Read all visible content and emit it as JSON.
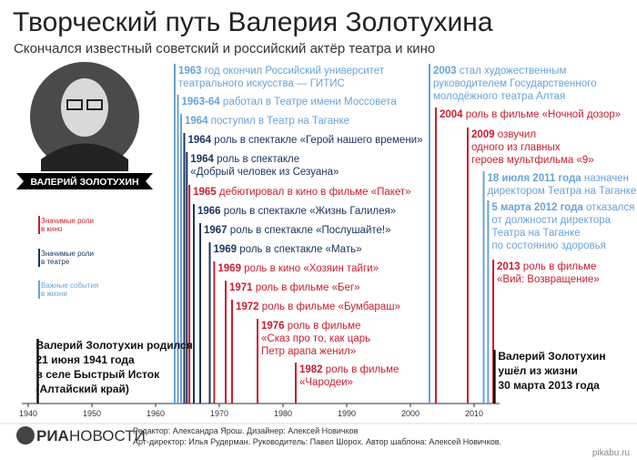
{
  "chart_data": {
    "type": "timeline",
    "title": "Творческий путь Валерия Золотухина",
    "subtitle": "Скончался известный советский и российский актёр театра и кино",
    "portrait_caption": "ВАЛЕРИЙ ЗОЛОТУХИН",
    "xlim": [
      1939,
      2014
    ],
    "xticks": [
      1940,
      1950,
      1960,
      1970,
      1980,
      1990,
      2000,
      2010
    ],
    "series": [
      {
        "name_lines": [
          "Значимые роли",
          "в кино"
        ],
        "color": "#c8202f"
      },
      {
        "name_lines": [
          "Значимые роли",
          "в театре"
        ],
        "color": "#1d3560"
      },
      {
        "name_lines": [
          "Важные события",
          "в жизни"
        ],
        "color": "#6aa3d5"
      },
      {
        "color": "#111111"
      }
    ],
    "events": [
      {
        "x": 1963,
        "series": 2,
        "date": "1963",
        "lines": [
          "год окончил Российский университет",
          "театрального искусства — ГИТИС"
        ]
      },
      {
        "x": 1963.5,
        "series": 2,
        "date": "1963-64",
        "lines": [
          "работал в Театре имени Моссовета"
        ]
      },
      {
        "x": 1964,
        "series": 2,
        "date": "1964",
        "lines": [
          "поступил в Театр на Таганке"
        ]
      },
      {
        "x": 1964.5,
        "series": 1,
        "date": "1964",
        "lines": [
          "роль в спектакле «Герой нашего времени»"
        ]
      },
      {
        "x": 1964.9,
        "series": 1,
        "date": "1964",
        "lines": [
          "роль в спектакле",
          "«Добрый человек из Сезуана»"
        ]
      },
      {
        "x": 1965.3,
        "series": 0,
        "date": "1965",
        "lines": [
          "дебютировал в кино в фильме «Пакет»"
        ]
      },
      {
        "x": 1966,
        "series": 1,
        "date": "1966",
        "lines": [
          "роль в спектакле «Жизнь Галилея»"
        ]
      },
      {
        "x": 1967,
        "series": 1,
        "date": "1967",
        "lines": [
          "роль в спектакле «Послушайте!»"
        ]
      },
      {
        "x": 1968.5,
        "series": 1,
        "date": "1969",
        "lines": [
          "роль в спектакле «Мать»"
        ]
      },
      {
        "x": 1969.2,
        "series": 0,
        "date": "1969",
        "lines": [
          "роль в кино «Хозяин тайги»"
        ]
      },
      {
        "x": 1971,
        "series": 0,
        "date": "1971",
        "lines": [
          "роль в фильме «Бег»"
        ]
      },
      {
        "x": 1972,
        "series": 0,
        "date": "1972",
        "lines": [
          "роль в фильме «Бумбараш»"
        ]
      },
      {
        "x": 1976,
        "series": 0,
        "date": "1976",
        "lines": [
          "роль в фильме",
          "«Сказ про то, как царь",
          "Петр арапа женил»"
        ]
      },
      {
        "x": 1982,
        "series": 0,
        "date": "1982",
        "lines": [
          "роль в фильме",
          "«Чародеи»"
        ]
      },
      {
        "x": 2003,
        "series": 2,
        "date": "2003",
        "lines": [
          "стал художественным",
          "руководителем Государственного",
          "молодёжного театра Алтая"
        ]
      },
      {
        "x": 2004,
        "series": 0,
        "date": "2004",
        "lines": [
          "роль в фильме «Ночной дозор»"
        ]
      },
      {
        "x": 2009,
        "series": 0,
        "date": "2009",
        "lines": [
          "озвучил",
          "одного из главных",
          "героев мультфильма «9»"
        ]
      },
      {
        "x": 2011.5,
        "series": 2,
        "date": "18 июля 2011 года",
        "lines": [
          "назначен",
          "директором Театра на Таганке"
        ]
      },
      {
        "x": 2012.2,
        "series": 2,
        "date": "5 марта 2012 года",
        "lines": [
          "отказался",
          "от должности директора",
          "Театра на Таганке",
          "по состоянию здоровья"
        ]
      },
      {
        "x": 2013,
        "series": 0,
        "date": "2013",
        "lines": [
          "роль в фильме",
          "«Вий: Возвращение»"
        ]
      },
      {
        "x": 1941.5,
        "series": 3,
        "lines": [
          "Валерий Золотухин родился",
          "21 июня 1941 года",
          "в селе Быстрый Исток",
          "(Алтайский край)"
        ]
      },
      {
        "x": 2013.2,
        "series": 3,
        "lines": [
          "Валерий Золотухин",
          "ушёл из жизни",
          "30 марта 2013 года"
        ]
      }
    ]
  },
  "footer": {
    "logo_left": "РИА",
    "logo_right": "НОВОСТИ",
    "credits": [
      "Редактор: Александра Ярош. Дизайнер: Алексей Новичков",
      "Арт-директор: Илья Рудерман. Руководитель: Павел Шорох. Автор шаблона: Алексей Новичков."
    ],
    "watermark": "pikabu.ru"
  }
}
